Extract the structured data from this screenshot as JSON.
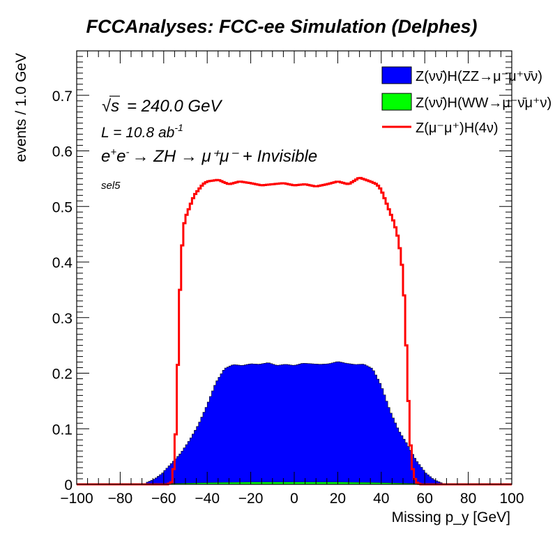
{
  "chart_data": {
    "type": "area",
    "title": "FCCAnalyses: FCC-ee Simulation (Delphes)",
    "xlabel": "Missing p_y [GeV]",
    "ylabel": "events / 1.0 GeV",
    "xlim": [
      -100,
      100
    ],
    "ylim": [
      0,
      0.78
    ],
    "x_ticks": [
      -100,
      -80,
      -60,
      -40,
      -20,
      0,
      20,
      40,
      60,
      80,
      100
    ],
    "y_ticks": [
      0,
      0.1,
      0.2,
      0.3,
      0.4,
      0.5,
      0.6,
      0.7
    ],
    "y_tick_labels": [
      "0",
      "0.1",
      "0.2",
      "0.3",
      "0.4",
      "0.5",
      "0.6",
      "0.7"
    ],
    "legend_position": "top-right",
    "annotations": {
      "sqrt_s": "= 240.0 GeV",
      "lumi": "L = 10.8 ab",
      "lumi_exp": "-1",
      "process": "→ ZH → μ⁺μ⁻ + Invisible",
      "selection": "sel5"
    },
    "series": [
      {
        "name": "Z(νν̄)H(ZZ→μ⁻μ⁺ν̄ν)",
        "style": "stacked-fill",
        "color": "#0000ff",
        "x": [
          -68,
          -64,
          -60,
          -56,
          -52,
          -48,
          -44,
          -40,
          -36,
          -32,
          -28,
          -24,
          -20,
          -16,
          -12,
          -8,
          -4,
          0,
          4,
          8,
          12,
          16,
          20,
          24,
          28,
          32,
          36,
          40,
          44,
          48,
          52,
          56,
          60,
          64,
          68
        ],
        "y": [
          0.003,
          0.01,
          0.022,
          0.038,
          0.055,
          0.078,
          0.105,
          0.14,
          0.18,
          0.205,
          0.212,
          0.21,
          0.213,
          0.212,
          0.215,
          0.21,
          0.212,
          0.21,
          0.214,
          0.213,
          0.212,
          0.213,
          0.217,
          0.214,
          0.212,
          0.213,
          0.205,
          0.175,
          0.13,
          0.095,
          0.07,
          0.042,
          0.022,
          0.009,
          0.002
        ]
      },
      {
        "name": "Z(νν̄)H(WW→μ⁻ν̄μ⁺ν)",
        "style": "stacked-fill",
        "color": "#00ff00",
        "x": [
          -60,
          -40,
          -20,
          0,
          20,
          40,
          60
        ],
        "y": [
          0.001,
          0.003,
          0.004,
          0.004,
          0.004,
          0.003,
          0.001
        ]
      },
      {
        "name": "Z(μ⁻μ⁺)H(4ν)",
        "style": "line",
        "color": "#ff0000",
        "x": [
          -100,
          -58,
          -56,
          -55,
          -54,
          -53,
          -52,
          -51,
          -50,
          -48,
          -46,
          -44,
          -42,
          -40,
          -35,
          -30,
          -25,
          -20,
          -15,
          -10,
          -5,
          0,
          5,
          10,
          15,
          20,
          25,
          30,
          35,
          38,
          40,
          42,
          44,
          46,
          48,
          50,
          51,
          52,
          53,
          54,
          55,
          56,
          58,
          100
        ],
        "y": [
          0,
          0,
          0.005,
          0.05,
          0.13,
          0.3,
          0.4,
          0.46,
          0.48,
          0.5,
          0.52,
          0.53,
          0.54,
          0.545,
          0.548,
          0.54,
          0.545,
          0.542,
          0.538,
          0.54,
          0.542,
          0.538,
          0.54,
          0.536,
          0.54,
          0.545,
          0.54,
          0.552,
          0.545,
          0.54,
          0.53,
          0.51,
          0.49,
          0.47,
          0.44,
          0.38,
          0.3,
          0.2,
          0.1,
          0.04,
          0.015,
          0.004,
          0,
          0
        ]
      }
    ]
  }
}
